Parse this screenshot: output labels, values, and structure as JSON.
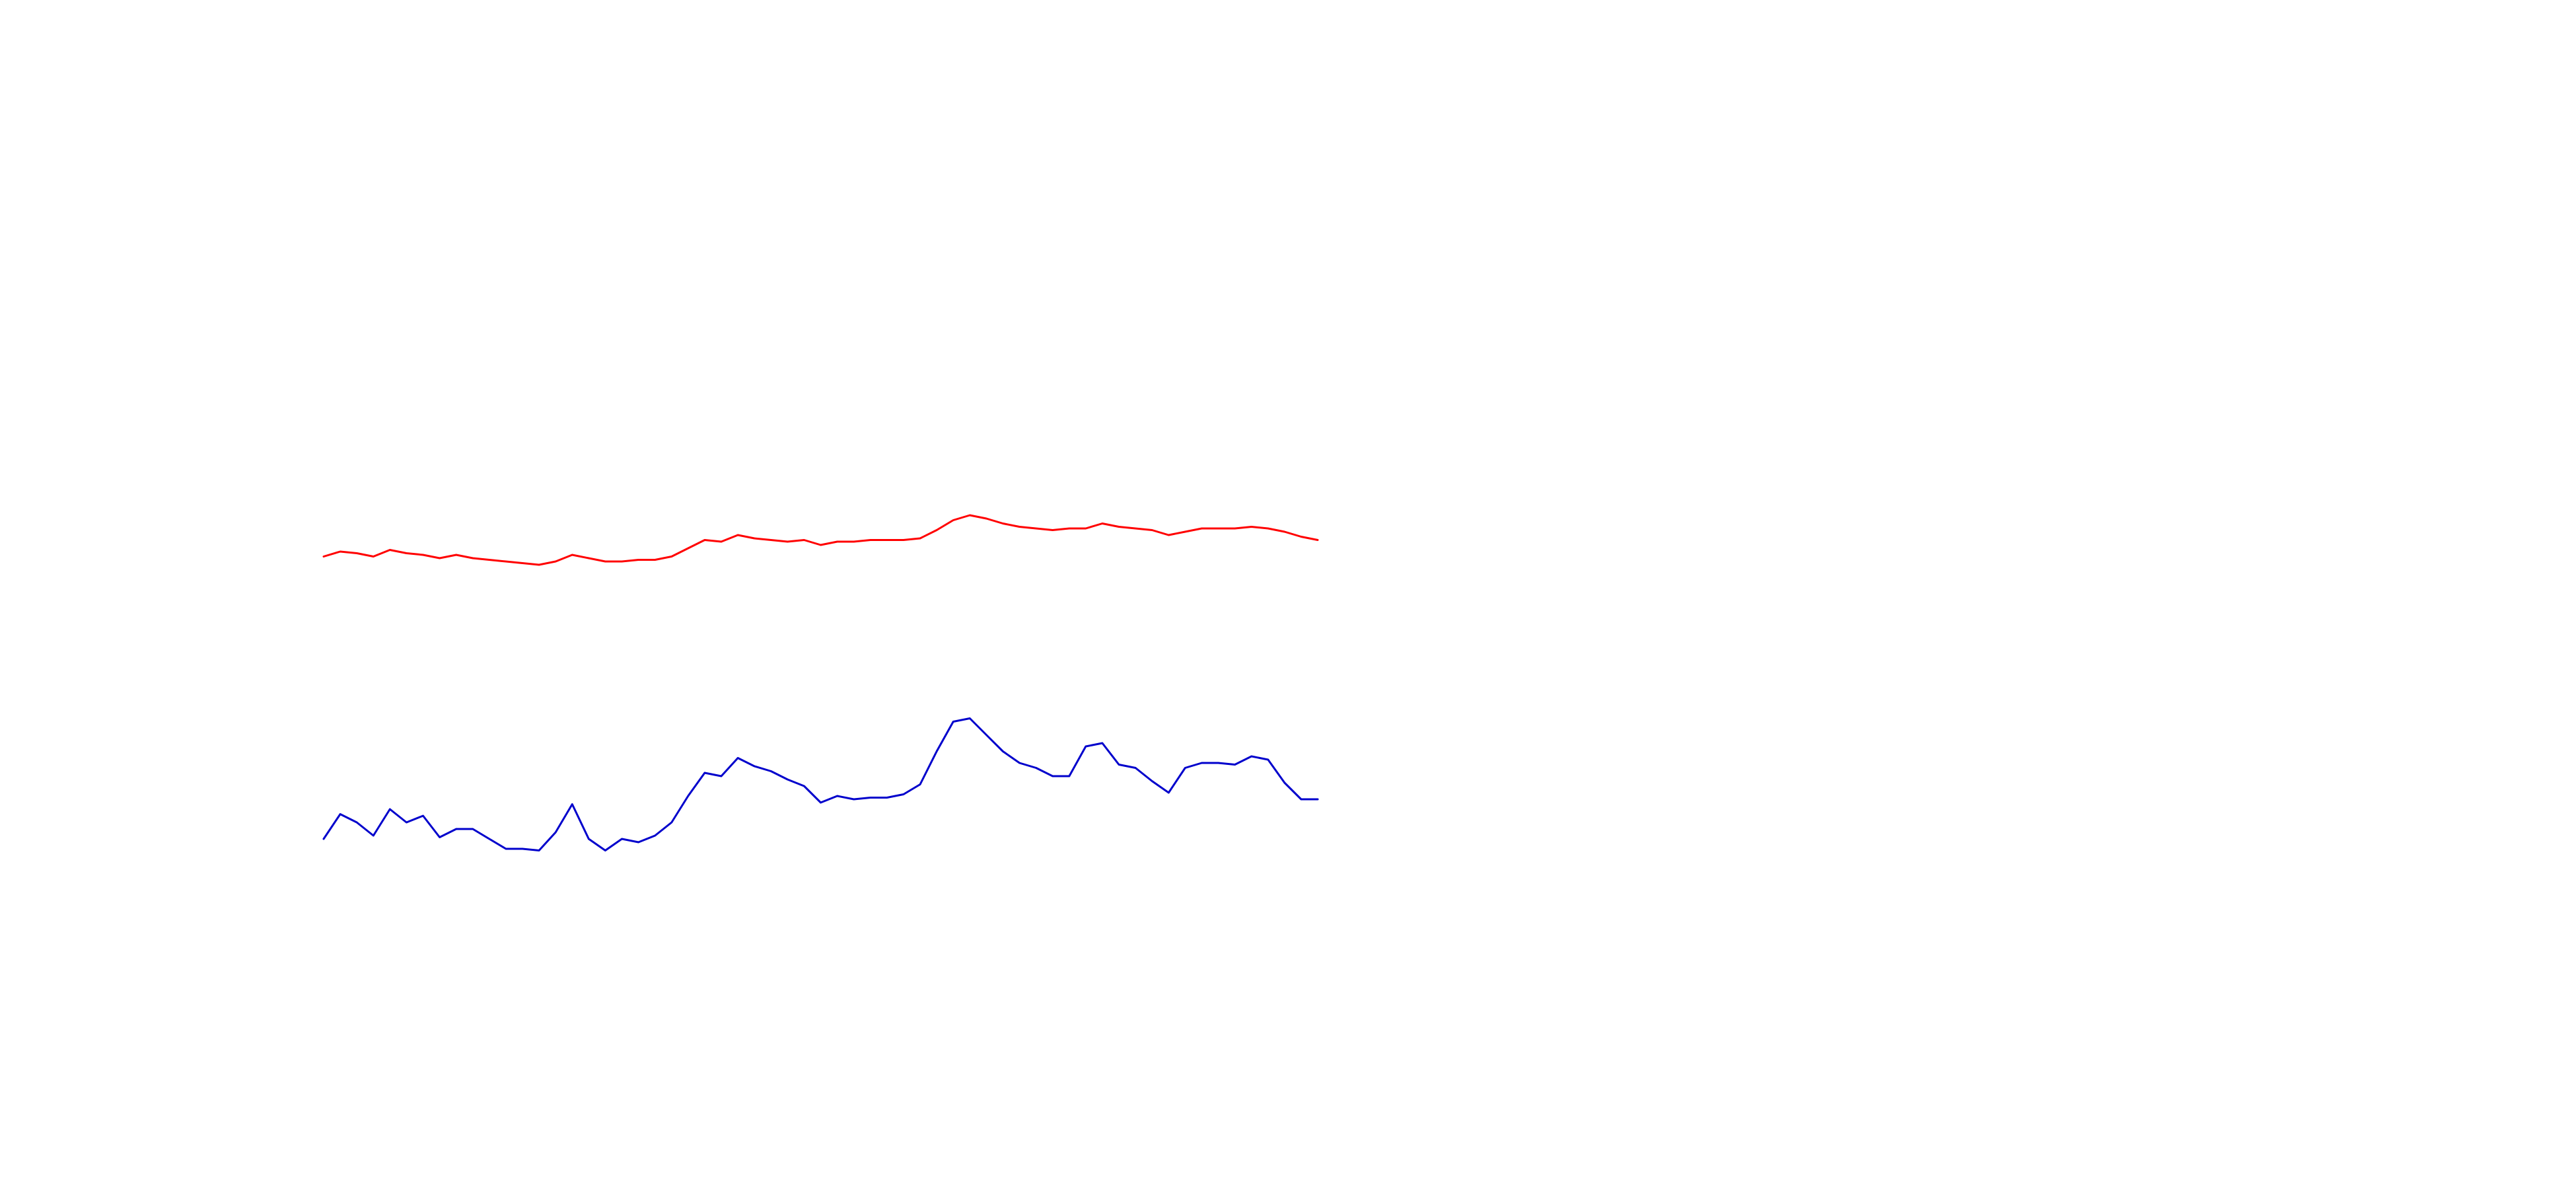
{
  "chart_data": {
    "type": "line",
    "ylim": [
      0,
      720
    ],
    "series": [
      {
        "color": "#ff0000",
        "values": [
          383,
          386,
          385,
          383,
          387,
          385,
          384,
          382,
          384,
          382,
          381,
          380,
          379,
          378,
          380,
          384,
          382,
          380,
          380,
          381,
          381,
          383,
          388,
          393,
          392,
          396,
          394,
          393,
          392,
          393,
          390,
          392,
          392,
          393,
          393,
          393,
          394,
          399,
          405,
          408,
          406,
          403,
          401,
          400,
          399,
          400,
          400,
          403,
          401,
          400,
          399,
          396,
          398,
          400,
          400,
          400,
          401,
          400,
          398,
          395,
          393
        ]
      },
      {
        "color": "#0000cc",
        "values": [
          212,
          227,
          222,
          214,
          230,
          222,
          226,
          213,
          218,
          218,
          212,
          206,
          206,
          205,
          216,
          233,
          212,
          205,
          212,
          210,
          214,
          222,
          238,
          252,
          250,
          261,
          256,
          253,
          248,
          244,
          234,
          238,
          236,
          237,
          237,
          239,
          245,
          265,
          283,
          285,
          275,
          265,
          258,
          255,
          250,
          250,
          268,
          270,
          257,
          255,
          247,
          240,
          255,
          258,
          258,
          257,
          262,
          260,
          246,
          236,
          236
        ]
      }
    ]
  }
}
